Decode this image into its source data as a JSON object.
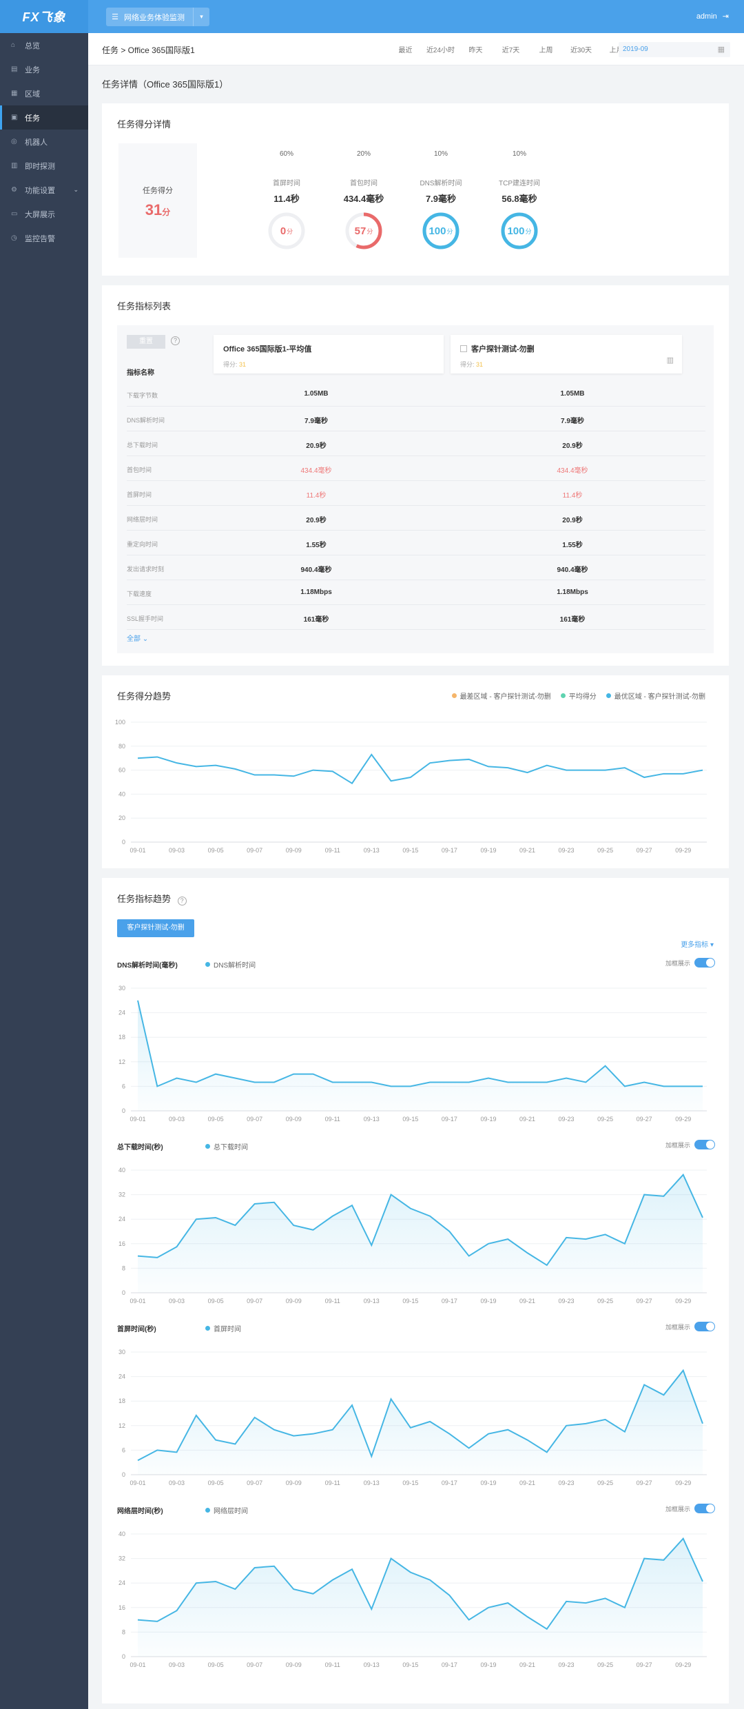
{
  "app": {
    "logo": "FX飞象",
    "project": "网络业务体验监测",
    "project_icon": "☰",
    "user": "admin"
  },
  "sidebar": {
    "items": [
      {
        "label": "总览",
        "icon": "⌂"
      },
      {
        "label": "业务",
        "icon": "▤"
      },
      {
        "label": "区域",
        "icon": "▦"
      },
      {
        "label": "任务",
        "icon": "▣",
        "active": true
      },
      {
        "label": "机器人",
        "icon": "◎"
      },
      {
        "label": "即时探测",
        "icon": "▥"
      },
      {
        "label": "功能设置",
        "icon": "⚙",
        "expand": true
      },
      {
        "label": "大屏展示",
        "icon": "▭"
      },
      {
        "label": "监控告警",
        "icon": "◷"
      }
    ]
  },
  "header": {
    "breadcrumb": "任务 > Office 365国际版1",
    "ranges": [
      "最近",
      "近24小时",
      "昨天",
      "近7天",
      "上周",
      "近30天",
      "上月"
    ],
    "date_value": "2019-09"
  },
  "page_title": "任务详情（Office 365国际版1）",
  "score_card": {
    "title": "任务得分详情",
    "score_label": "任务得分",
    "score_value": "31",
    "score_unit": "分",
    "metrics": [
      {
        "weight": "60%",
        "name": "首屏时间",
        "value": "11.4秒",
        "score": "0",
        "unit": "分",
        "score_num": 0,
        "color": "#e96a6a"
      },
      {
        "weight": "20%",
        "name": "首包时间",
        "value": "434.4毫秒",
        "score": "57",
        "unit": "分",
        "score_num": 57,
        "color": "#e96a6a"
      },
      {
        "weight": "10%",
        "name": "DNS解析时间",
        "value": "7.9毫秒",
        "score": "100",
        "unit": "分",
        "score_num": 100,
        "color": "#45b6e4"
      },
      {
        "weight": "10%",
        "name": "TCP建连时间",
        "value": "56.8毫秒",
        "score": "100",
        "unit": "分",
        "score_num": 100,
        "color": "#45b6e4"
      }
    ]
  },
  "index_table": {
    "title": "任务指标列表",
    "reset_label": "重置",
    "help": "?",
    "index_name_header": "指标名称",
    "col1": {
      "name": "Office 365国际版1-平均值",
      "score_label": "得分:",
      "score": "31"
    },
    "col2": {
      "name": "客户探针测试-勿删",
      "score_label": "得分:",
      "score": "31"
    },
    "rows": [
      {
        "label": "下载字节数",
        "v1": "1.05MB",
        "v2": "1.05MB",
        "red": false
      },
      {
        "label": "DNS解析时间",
        "v1": "7.9毫秒",
        "v2": "7.9毫秒",
        "red": false
      },
      {
        "label": "总下载时间",
        "v1": "20.9秒",
        "v2": "20.9秒",
        "red": false
      },
      {
        "label": "首包时间",
        "v1": "434.4毫秒",
        "v2": "434.4毫秒",
        "red": true
      },
      {
        "label": "首屏时间",
        "v1": "11.4秒",
        "v2": "11.4秒",
        "red": true
      },
      {
        "label": "网络层时间",
        "v1": "20.9秒",
        "v2": "20.9秒",
        "red": false
      },
      {
        "label": "重定向时间",
        "v1": "1.55秒",
        "v2": "1.55秒",
        "red": false
      },
      {
        "label": "发出请求时刻",
        "v1": "940.4毫秒",
        "v2": "940.4毫秒",
        "red": false
      },
      {
        "label": "下载速度",
        "v1": "1.18Mbps",
        "v2": "1.18Mbps",
        "red": false
      },
      {
        "label": "SSL握手时间",
        "v1": "161毫秒",
        "v2": "161毫秒",
        "red": false
      }
    ],
    "more_label": "全部 ⌄"
  },
  "score_trend": {
    "title": "任务得分趋势",
    "legend": [
      {
        "name": "最差区域 - 客户探针测试-勿删",
        "color": "#f5b56a"
      },
      {
        "name": "平均得分",
        "color": "#5fd3b0"
      },
      {
        "name": "最优区域 - 客户探针测试-勿删",
        "color": "#45b6e4"
      }
    ]
  },
  "index_trend": {
    "title": "任务指标趋势",
    "help": "?",
    "filter_label": "客户探针测试-勿删",
    "more_label": "更多指标 ▾",
    "toggle_label": "加框展示",
    "subcharts": [
      {
        "title": "DNS解析时间(毫秒)",
        "legend": "DNS解析时间"
      },
      {
        "title": "总下载时间(秒)",
        "legend": "总下载时间"
      },
      {
        "title": "首屏时间(秒)",
        "legend": "首屏时间"
      },
      {
        "title": "网络层时间(秒)",
        "legend": "网络层时间"
      }
    ]
  },
  "chart_data": [
    {
      "type": "line",
      "title": "任务得分趋势",
      "x": [
        "09-01",
        "09-02",
        "09-03",
        "09-04",
        "09-05",
        "09-06",
        "09-07",
        "09-08",
        "09-09",
        "09-10",
        "09-11",
        "09-12",
        "09-13",
        "09-14",
        "09-15",
        "09-16",
        "09-17",
        "09-18",
        "09-19",
        "09-20",
        "09-21",
        "09-22",
        "09-23",
        "09-24",
        "09-25",
        "09-26",
        "09-27",
        "09-28",
        "09-29",
        "09-30"
      ],
      "x_tick_labels": [
        "09-01",
        "09-03",
        "09-05",
        "09-07",
        "09-09",
        "09-11",
        "09-13",
        "09-15",
        "09-17",
        "09-19",
        "09-21",
        "09-23",
        "09-25",
        "09-27",
        "09-29"
      ],
      "yticks": [
        0,
        20,
        40,
        60,
        80,
        100
      ],
      "ylim": [
        0,
        100
      ],
      "series": [
        {
          "name": "最优区域 - 客户探针测试-勿删",
          "color": "#45b6e4",
          "values": [
            70,
            71,
            66,
            63,
            64,
            61,
            56,
            56,
            55,
            60,
            59,
            49,
            73,
            51,
            54,
            66,
            68,
            69,
            63,
            62,
            58,
            64,
            60,
            60,
            60,
            62,
            54,
            57,
            57,
            60
          ]
        }
      ]
    },
    {
      "type": "area",
      "title": "DNS解析时间(毫秒)",
      "x_tick_labels": [
        "09-01",
        "09-03",
        "09-05",
        "09-07",
        "09-09",
        "09-11",
        "09-13",
        "09-15",
        "09-17",
        "09-19",
        "09-21",
        "09-23",
        "09-25",
        "09-27",
        "09-29"
      ],
      "yticks": [
        0,
        6,
        12,
        18,
        24,
        30
      ],
      "ylim": [
        0,
        30
      ],
      "series": [
        {
          "name": "DNS解析时间",
          "values": [
            27,
            6,
            8,
            7,
            9,
            8,
            7,
            7,
            9,
            9,
            7,
            7,
            7,
            6,
            6,
            7,
            7,
            7,
            8,
            7,
            7,
            7,
            8,
            7,
            11,
            6,
            7,
            6,
            6,
            6
          ]
        }
      ]
    },
    {
      "type": "area",
      "title": "总下载时间(秒)",
      "x_tick_labels": [
        "09-01",
        "09-03",
        "09-05",
        "09-07",
        "09-09",
        "09-11",
        "09-13",
        "09-15",
        "09-17",
        "09-19",
        "09-21",
        "09-23",
        "09-25",
        "09-27",
        "09-29"
      ],
      "yticks": [
        0,
        8,
        16,
        24,
        32,
        40
      ],
      "ylim": [
        0,
        40
      ],
      "series": [
        {
          "name": "总下载时间",
          "values": [
            12,
            11.5,
            15,
            24,
            24.5,
            22,
            29,
            29.5,
            22,
            20.5,
            25,
            28.5,
            15.5,
            32,
            27.5,
            25,
            20,
            12,
            16,
            17.5,
            13,
            9,
            18,
            17.5,
            19,
            16,
            32,
            31.5,
            38.5,
            24.5
          ]
        }
      ]
    },
    {
      "type": "area",
      "title": "首屏时间(秒)",
      "x_tick_labels": [
        "09-01",
        "09-03",
        "09-05",
        "09-07",
        "09-09",
        "09-11",
        "09-13",
        "09-15",
        "09-17",
        "09-19",
        "09-21",
        "09-23",
        "09-25",
        "09-27",
        "09-29"
      ],
      "yticks": [
        0,
        6,
        12,
        18,
        24,
        30
      ],
      "ylim": [
        0,
        30
      ],
      "series": [
        {
          "name": "首屏时间",
          "values": [
            3.5,
            6,
            5.5,
            14.5,
            8.5,
            7.5,
            14,
            11,
            9.5,
            10,
            11,
            17,
            4.5,
            18.5,
            11.5,
            13,
            10,
            6.5,
            10,
            11,
            8.5,
            5.5,
            12,
            12.5,
            13.5,
            10.5,
            22,
            19.5,
            25.5,
            12.5
          ]
        }
      ]
    },
    {
      "type": "area",
      "title": "网络层时间(秒)",
      "x_tick_labels": [
        "09-01",
        "09-03",
        "09-05",
        "09-07",
        "09-09",
        "09-11",
        "09-13",
        "09-15",
        "09-17",
        "09-19",
        "09-21",
        "09-23",
        "09-25",
        "09-27",
        "09-29"
      ],
      "yticks": [
        0,
        8,
        16,
        24,
        32,
        40
      ],
      "ylim": [
        0,
        40
      ],
      "series": [
        {
          "name": "网络层时间",
          "values": [
            12,
            11.5,
            15,
            24,
            24.5,
            22,
            29,
            29.5,
            22,
            20.5,
            25,
            28.5,
            15.5,
            32,
            27.5,
            25,
            20,
            12,
            16,
            17.5,
            13,
            9,
            18,
            17.5,
            19,
            16,
            32,
            31.5,
            38.5,
            24.5
          ]
        }
      ]
    }
  ]
}
